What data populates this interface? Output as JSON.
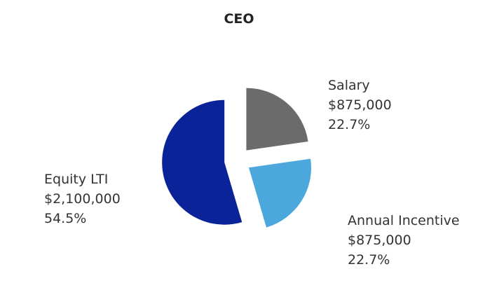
{
  "chart_data": {
    "type": "pie",
    "title": "CEO",
    "exploded": true,
    "start": "12 o'clock, clockwise",
    "slices": [
      {
        "label": "Salary",
        "value": 875000,
        "value_text": "$875,000",
        "percent_text": "22.7%",
        "percent": 22.7,
        "color": "#6b6b6b"
      },
      {
        "label": "Annual Incentive",
        "value": 875000,
        "value_text": "$875,000",
        "percent_text": "22.7%",
        "percent": 22.7,
        "color": "#4ca8dc"
      },
      {
        "label": "Equity LTI",
        "value": 2100000,
        "value_text": "$2,100,000",
        "percent_text": "54.5%",
        "percent": 54.5,
        "color": "#0a2399"
      }
    ]
  }
}
